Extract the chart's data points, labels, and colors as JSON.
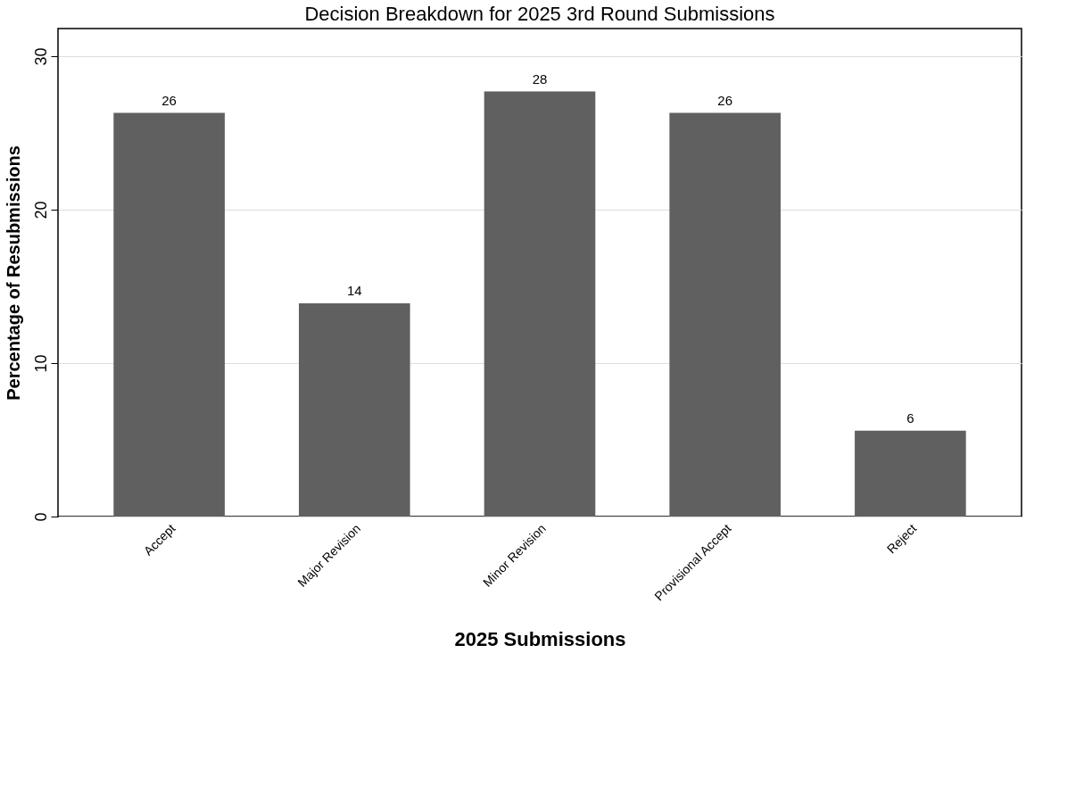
{
  "chart_data": {
    "type": "bar",
    "title": "Decision Breakdown for 2025 3rd Round Submissions",
    "xlabel": "2025 Submissions",
    "ylabel": "Percentage of Resubmissions",
    "categories": [
      "Accept",
      "Major Revision",
      "Minor Revision",
      "Provisional Accept",
      "Reject"
    ],
    "values": [
      26.3,
      13.9,
      27.7,
      26.3,
      5.6
    ],
    "value_labels": [
      "26",
      "14",
      "28",
      "26",
      "6"
    ],
    "color": "#606060",
    "ylim": [
      0,
      31.8
    ],
    "yticks": [
      0,
      10,
      20,
      30
    ],
    "grid": "y"
  }
}
